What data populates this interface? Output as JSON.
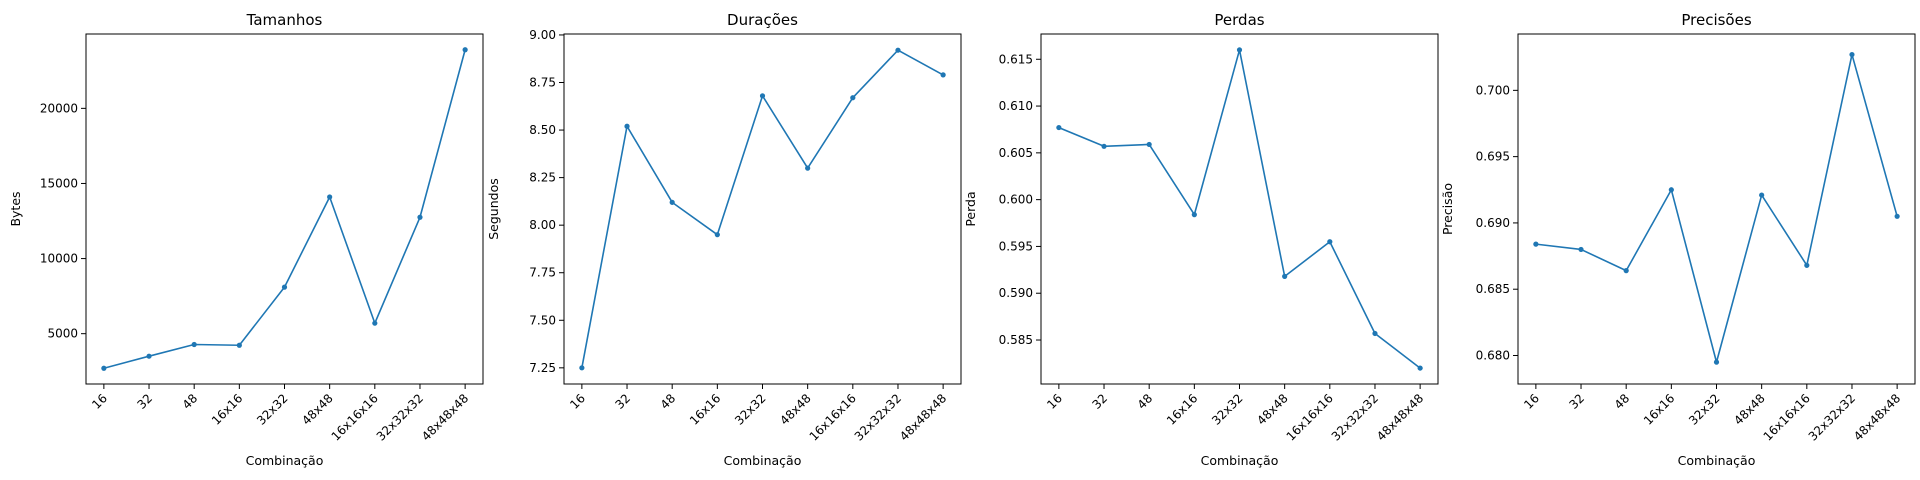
{
  "chart_data": [
    {
      "type": "line",
      "title": "Tamanhos",
      "xlabel": "Combinação",
      "ylabel": "Bytes",
      "categories": [
        "16",
        "32",
        "48",
        "16x16",
        "32x32",
        "48x48",
        "16x16x16",
        "32x32x32",
        "48x48x48"
      ],
      "values": [
        2700,
        3500,
        4280,
        4230,
        8100,
        14100,
        5700,
        12750,
        23900
      ],
      "ylim": [
        1650,
        24950
      ],
      "yticks": [
        5000,
        10000,
        15000,
        20000
      ],
      "ytick_labels": [
        "5000",
        "10000",
        "15000",
        "20000"
      ],
      "color": "#1f77b4",
      "marker": "dot"
    },
    {
      "type": "line",
      "title": "Durações",
      "xlabel": "Combinação",
      "ylabel": "Segundos",
      "categories": [
        "16",
        "32",
        "48",
        "16x16",
        "32x32",
        "48x48",
        "16x16x16",
        "32x32x32",
        "48x48x48"
      ],
      "values": [
        7.25,
        8.52,
        8.12,
        7.95,
        8.68,
        8.3,
        8.67,
        8.92,
        8.79
      ],
      "ylim": [
        7.165,
        9.005
      ],
      "yticks": [
        7.25,
        7.5,
        7.75,
        8.0,
        8.25,
        8.5,
        8.75,
        9.0
      ],
      "ytick_labels": [
        "7.25",
        "7.50",
        "7.75",
        "8.00",
        "8.25",
        "8.50",
        "8.75",
        "9.00"
      ],
      "color": "#1f77b4",
      "marker": "dot"
    },
    {
      "type": "line",
      "title": "Perdas",
      "xlabel": "Combinação",
      "ylabel": "Perda",
      "categories": [
        "16",
        "32",
        "48",
        "16x16",
        "32x32",
        "48x48",
        "16x16x16",
        "32x32x32",
        "48x48x48"
      ],
      "values": [
        0.6077,
        0.6057,
        0.6059,
        0.5984,
        0.616,
        0.5918,
        0.5955,
        0.5857,
        0.582
      ],
      "ylim": [
        0.5803,
        0.6177
      ],
      "yticks": [
        0.585,
        0.59,
        0.595,
        0.6,
        0.605,
        0.61,
        0.615
      ],
      "ytick_labels": [
        "0.585",
        "0.590",
        "0.595",
        "0.600",
        "0.605",
        "0.610",
        "0.615"
      ],
      "color": "#1f77b4",
      "marker": "dot"
    },
    {
      "type": "line",
      "title": "Precisões",
      "xlabel": "Combinação",
      "ylabel": "Precisão",
      "categories": [
        "16",
        "32",
        "48",
        "16x16",
        "32x32",
        "48x48",
        "16x16x16",
        "32x32x32",
        "48x48x48"
      ],
      "values": [
        0.6884,
        0.688,
        0.6864,
        0.6925,
        0.6795,
        0.6921,
        0.6868,
        0.7027,
        0.6905
      ],
      "ylim": [
        0.67785,
        0.70425
      ],
      "yticks": [
        0.68,
        0.685,
        0.69,
        0.695,
        0.7
      ],
      "ytick_labels": [
        "0.680",
        "0.685",
        "0.690",
        "0.695",
        "0.700"
      ],
      "color": "#1f77b4",
      "marker": "dot"
    }
  ]
}
